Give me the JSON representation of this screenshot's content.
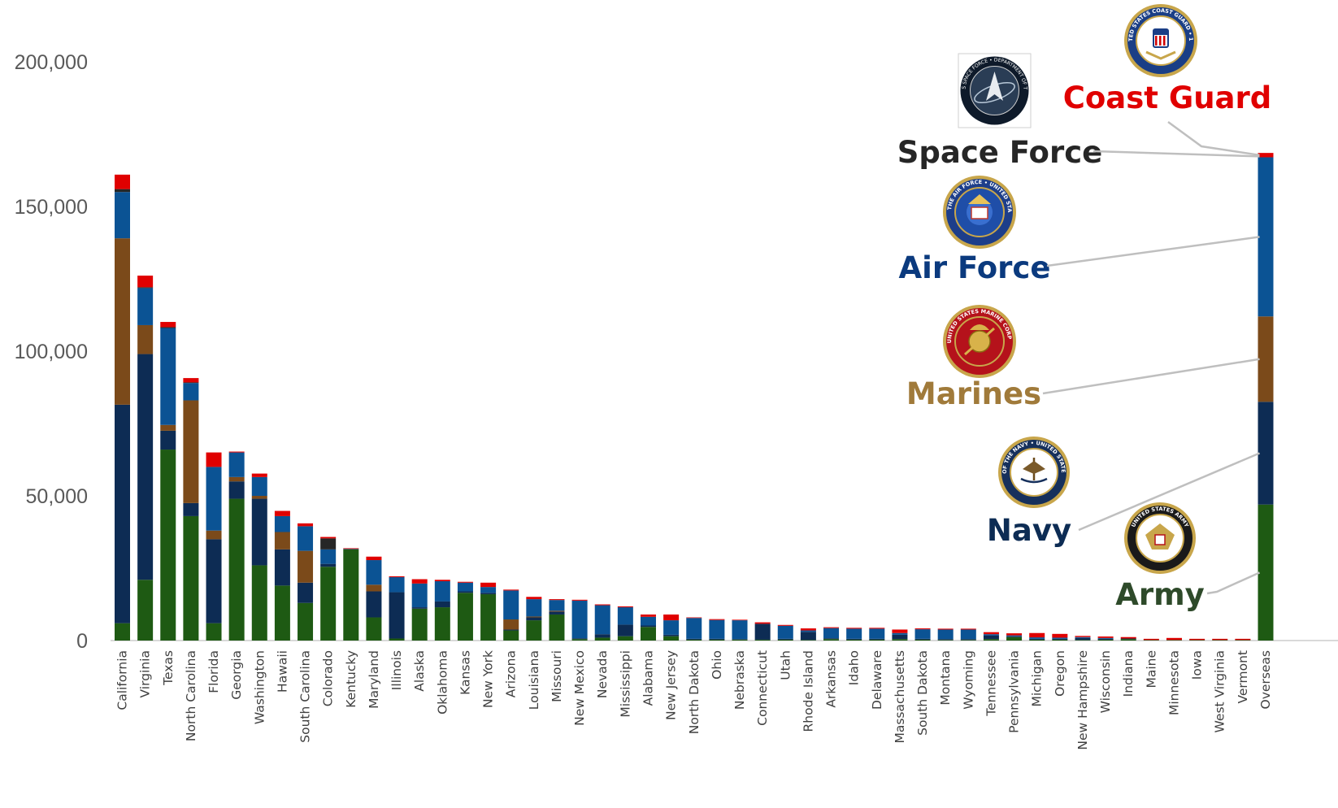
{
  "chart_data": {
    "type": "bar",
    "stacked": true,
    "title": "",
    "xlabel": "",
    "ylabel": "",
    "ylim": [
      0,
      200000
    ],
    "yticks": [
      0,
      50000,
      100000,
      150000,
      200000
    ],
    "ytick_labels": [
      "0",
      "50,000",
      "100,000",
      "150,000",
      "200,000"
    ],
    "grid": false,
    "categories": [
      "California",
      "Virginia",
      "Texas",
      "North Carolina",
      "Florida",
      "Georgia",
      "Washington",
      "Hawaii",
      "South Carolina",
      "Colorado",
      "Kentucky",
      "Maryland",
      "Illinois",
      "Alaska",
      "Oklahoma",
      "Kansas",
      "New York",
      "Arizona",
      "Louisiana",
      "Missouri",
      "New Mexico",
      "Nevada",
      "Mississippi",
      "Alabama",
      "New Jersey",
      "North Dakota",
      "Ohio",
      "Nebraska",
      "Connecticut",
      "Utah",
      "Rhode Island",
      "Arkansas",
      "Idaho",
      "Delaware",
      "Massachusetts",
      "South Dakota",
      "Montana",
      "Wyoming",
      "Tennessee",
      "Pennsylvania",
      "Michigan",
      "Oregon",
      "New Hampshire",
      "Wisconsin",
      "Indiana",
      "Maine",
      "Minnesota",
      "Iowa",
      "West Virginia",
      "Vermont",
      "Overseas"
    ],
    "series": [
      {
        "name": "Army",
        "color": "#1e5a13",
        "values": [
          6000,
          21000,
          66000,
          43000,
          6000,
          49000,
          26000,
          19000,
          13000,
          25500,
          31500,
          8000,
          700,
          11000,
          11500,
          16500,
          16000,
          3500,
          7000,
          9000,
          500,
          1000,
          1500,
          4700,
          1500,
          300,
          300,
          300,
          300,
          300,
          200,
          500,
          300,
          300,
          500,
          300,
          200,
          200,
          500,
          1200,
          300,
          300,
          200,
          300,
          500,
          200,
          200,
          200,
          200,
          200,
          47000
        ]
      },
      {
        "name": "Navy",
        "color": "#0d2c54",
        "values": [
          75500,
          78000,
          6500,
          4500,
          29000,
          6000,
          23000,
          12500,
          7000,
          1000,
          200,
          9000,
          16000,
          500,
          2000,
          500,
          500,
          300,
          1000,
          1000,
          300,
          1200,
          4000,
          500,
          500,
          300,
          300,
          200,
          5500,
          300,
          2800,
          300,
          300,
          300,
          1500,
          300,
          300,
          300,
          1200,
          300,
          300,
          300,
          700,
          300,
          200,
          0,
          0,
          0,
          0,
          0,
          35500
        ]
      },
      {
        "name": "Marines",
        "color": "#7b4a1a",
        "values": [
          57500,
          10000,
          2000,
          35500,
          3000,
          1500,
          1000,
          6000,
          11000,
          0,
          0,
          2300,
          0,
          0,
          0,
          0,
          0,
          3500,
          300,
          300,
          0,
          0,
          0,
          0,
          0,
          0,
          0,
          0,
          0,
          0,
          0,
          0,
          0,
          0,
          0,
          0,
          0,
          0,
          0,
          0,
          0,
          0,
          0,
          0,
          0,
          0,
          0,
          0,
          0,
          0,
          29500
        ]
      },
      {
        "name": "Air Force",
        "color": "#0b5394",
        "values": [
          16000,
          12800,
          33500,
          6000,
          22000,
          8500,
          6500,
          5500,
          8500,
          5000,
          0,
          8500,
          5200,
          8200,
          7000,
          3000,
          2000,
          10000,
          6000,
          3700,
          13000,
          10000,
          6000,
          3000,
          5000,
          7200,
          6500,
          6500,
          0,
          4500,
          500,
          3500,
          3500,
          3500,
          600,
          3300,
          3300,
          3300,
          500,
          300,
          500,
          400,
          300,
          300,
          0,
          0,
          0,
          0,
          0,
          0,
          55000
        ]
      },
      {
        "name": "Space Force",
        "color": "#262626",
        "values": [
          1000,
          300,
          300,
          200,
          0,
          0,
          0,
          0,
          0,
          3800,
          0,
          0,
          0,
          0,
          0,
          0,
          0,
          0,
          0,
          0,
          0,
          0,
          0,
          0,
          0,
          0,
          0,
          0,
          0,
          0,
          0,
          0,
          0,
          0,
          0,
          0,
          0,
          0,
          0,
          0,
          0,
          0,
          0,
          0,
          0,
          0,
          0,
          0,
          0,
          0,
          0
        ]
      },
      {
        "name": "Coast Guard",
        "color": "#e00000",
        "values": [
          5000,
          4000,
          1800,
          1500,
          5000,
          300,
          1200,
          1800,
          1000,
          500,
          200,
          1200,
          300,
          1500,
          500,
          300,
          1500,
          300,
          800,
          300,
          300,
          300,
          300,
          800,
          2000,
          200,
          300,
          200,
          500,
          300,
          700,
          300,
          300,
          300,
          1200,
          300,
          300,
          300,
          700,
          700,
          1500,
          1300,
          400,
          500,
          500,
          400,
          700,
          400,
          400,
          400,
          1500
        ]
      }
    ]
  },
  "legend_annotations": [
    {
      "key": "coast_guard",
      "label": "Coast Guard",
      "color": "#e00000",
      "icon": "coast-guard-seal-icon"
    },
    {
      "key": "space_force",
      "label": "Space Force",
      "color": "#262626",
      "icon": "space-force-seal-icon"
    },
    {
      "key": "air_force",
      "label": "Air Force",
      "color": "#0b3a7e",
      "icon": "air-force-seal-icon"
    },
    {
      "key": "marines",
      "label": "Marines",
      "color": "#a07a3a",
      "icon": "marine-corps-seal-icon"
    },
    {
      "key": "navy",
      "label": "Navy",
      "color": "#0d2c54",
      "icon": "navy-seal-icon"
    },
    {
      "key": "army",
      "label": "Army",
      "color": "#2e4a2a",
      "icon": "army-seal-icon"
    }
  ],
  "seal_texts": {
    "space_force": "UNITED STATES SPACE FORCE • DEPARTMENT OF THE AIR FORCE",
    "air_force": "DEPARTMENT OF THE AIR FORCE • UNITED STATES OF AMERICA",
    "marines": "UNITED STATES MARINE CORPS",
    "navy": "DEPARTMENT OF THE NAVY • UNITED STATES OF AMERICA",
    "army": "UNITED STATES ARMY",
    "coast_guard": "UNITED STATES COAST GUARD • 1790"
  }
}
